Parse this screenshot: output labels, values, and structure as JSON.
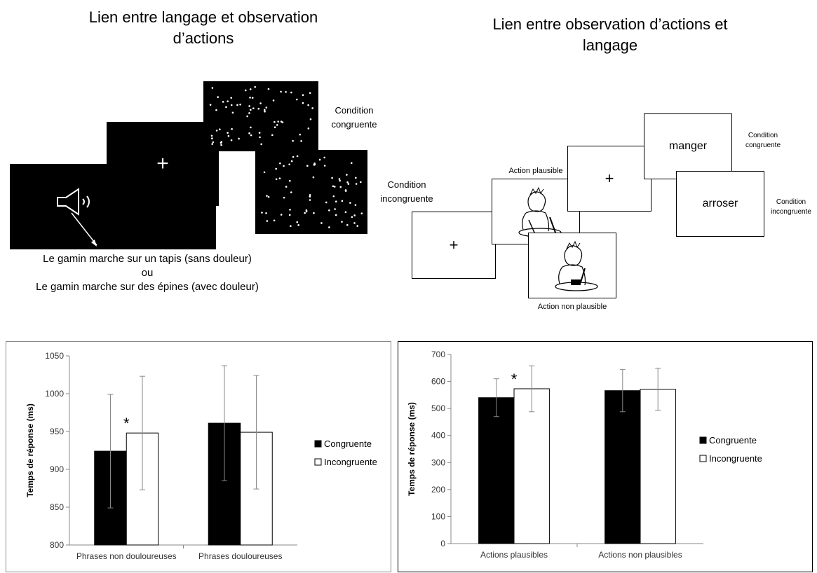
{
  "left_diagram": {
    "title_line1": "Lien entre langage et observation",
    "title_line2": "d’actions",
    "label_congruent_line1": "Condition",
    "label_congruent_line2": "congruente",
    "label_incongruent_line1": "Condition",
    "label_incongruent_line2": "incongruente",
    "fixation": "+",
    "sentence1": "Le gamin marche sur un tapis (sans douleur)",
    "sentence_or": "ou",
    "sentence2": "Le gamin marche sur des épines (avec douleur)"
  },
  "right_diagram": {
    "title_line1": "Lien entre observation d’actions et",
    "title_line2": "langage",
    "fixation": "+",
    "action_plausible": "Action plausible",
    "action_non_plausible": "Action non plausible",
    "word_congruent": "manger",
    "word_incongruent": "arroser",
    "label_congruent_line1": "Condition",
    "label_congruent_line2": "congruente",
    "label_incongruent_line1": "Condition",
    "label_incongruent_line2": "incongruente"
  },
  "chart_data": [
    {
      "type": "bar",
      "categories": [
        "Phrases non douloureuses",
        "Phrases douloureuses"
      ],
      "series": [
        {
          "name": "Congruente",
          "color": "#000000",
          "values": [
            924,
            961
          ],
          "errors": [
            75,
            76
          ]
        },
        {
          "name": "Incongruente",
          "color": "#ffffff",
          "values": [
            948,
            949
          ],
          "errors": [
            75,
            75
          ]
        }
      ],
      "ylabel": "Temps de réponse (ms)",
      "ylim": [
        800,
        1050
      ],
      "yticks": [
        800,
        850,
        900,
        950,
        1000,
        1050
      ],
      "annotation": "*",
      "legend_position": "right"
    },
    {
      "type": "bar",
      "categories": [
        "Actions plausibles",
        "Actions non plausibles"
      ],
      "series": [
        {
          "name": "Congruente",
          "color": "#000000",
          "values": [
            540,
            566
          ],
          "errors": [
            70,
            78
          ]
        },
        {
          "name": "Incongruente",
          "color": "#ffffff",
          "values": [
            573,
            571
          ],
          "errors": [
            85,
            78
          ]
        }
      ],
      "ylabel": "Temps de réponse (ms)",
      "ylim": [
        0,
        700
      ],
      "yticks": [
        0,
        100,
        200,
        300,
        400,
        500,
        600,
        700
      ],
      "annotation": "*",
      "legend_position": "right"
    }
  ]
}
